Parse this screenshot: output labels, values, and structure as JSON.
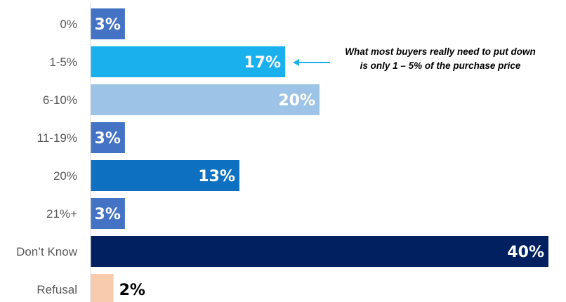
{
  "chart_data": {
    "type": "bar",
    "orientation": "horizontal",
    "categories": [
      "0%",
      "1-5%",
      "6-10%",
      "11-19%",
      "20%",
      "21%+",
      "Don’t Know",
      "Refusal"
    ],
    "values": [
      3,
      17,
      20,
      3,
      13,
      3,
      40,
      2
    ],
    "value_labels": [
      "3%",
      "17%",
      "20%",
      "3%",
      "13%",
      "3%",
      "40%",
      "2%"
    ],
    "bar_colors": [
      "#4472C4",
      "#1AB0EE",
      "#9DC3E6",
      "#4472C4",
      "#0E70C0",
      "#4472C4",
      "#002060",
      "#F8CBAD"
    ],
    "label_colors": [
      "#595959",
      "#595959",
      "#595959",
      "#595959",
      "#595959",
      "#595959",
      "#C00000",
      "#595959"
    ],
    "value_label_colors": [
      "#ffffff",
      "#ffffff",
      "#ffffff",
      "#ffffff",
      "#ffffff",
      "#ffffff",
      "#ffffff",
      "#000000"
    ],
    "xlim": [
      0,
      40
    ],
    "grid": false,
    "axis_line": true,
    "title": "",
    "xlabel": "",
    "ylabel": ""
  },
  "annotation": {
    "line1": "What most buyers really need to put down",
    "line2": "is only 1 – 5% of the purchase price",
    "target_category": "1-5%",
    "arrow_color": "#1AB0EE"
  }
}
